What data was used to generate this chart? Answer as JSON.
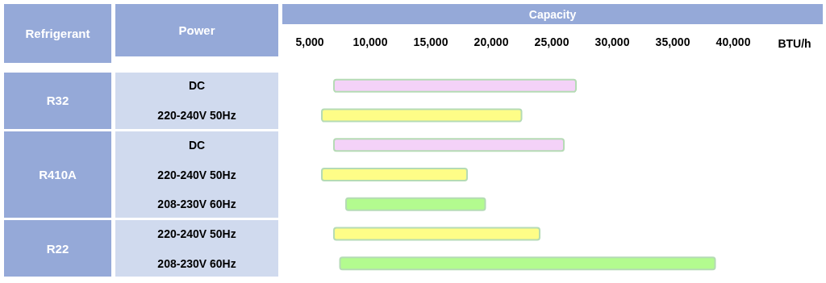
{
  "chart_data": {
    "type": "bar",
    "orientation": "horizontal",
    "title": "Capacity",
    "xlabel": "BTU/h",
    "ylabel": "Power",
    "annotations": [
      "Refrigerant",
      "R32",
      "R410A",
      "R22"
    ],
    "categories": [
      "DC",
      "220-240V 50Hz",
      "DC",
      "220-240V 50Hz",
      "208-230V 60Hz",
      "220-240V 50Hz",
      "208-230V 60Hz"
    ],
    "base": [
      7000,
      6000,
      7000,
      6000,
      8000,
      7000,
      7500
    ],
    "values": [
      20000,
      16500,
      19000,
      12000,
      11500,
      17000,
      31000
    ],
    "colors": [
      "#f4d2f8",
      "#fefd87",
      "#f4d2f8",
      "#fefd87",
      "#b3fb8f",
      "#fefd87",
      "#b3fb8f"
    ],
    "xlim": [
      5000,
      40000
    ],
    "xticks": [
      {
        "value": 5000,
        "label": "5,000"
      },
      {
        "value": 10000,
        "label": "10,000"
      },
      {
        "value": 15000,
        "label": "15,000"
      },
      {
        "value": 20000,
        "label": "20,000"
      },
      {
        "value": 25000,
        "label": "25,000"
      },
      {
        "value": 30000,
        "label": "30,000"
      },
      {
        "value": 35000,
        "label": "35,000"
      },
      {
        "value": 40000,
        "label": "40,000"
      }
    ],
    "grid": false
  }
}
